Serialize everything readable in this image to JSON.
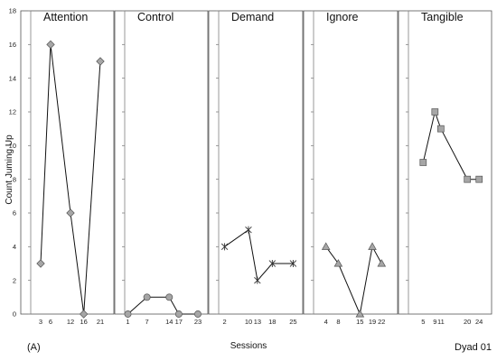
{
  "figure": {
    "panel_label": "(A)",
    "dyad_label": "Dyad 01"
  },
  "colors": {
    "marker_fill": "#a6a6a6",
    "marker_stroke": "#555555",
    "line": "#111111",
    "frame": "#555555",
    "axis": "#808080"
  },
  "chart_data": {
    "type": "line",
    "ylabel": "Count Juming Up",
    "xlabel": "Sessions",
    "ylim": [
      0,
      18
    ],
    "yticks": [
      0,
      2,
      4,
      6,
      8,
      10,
      12,
      14,
      16,
      18
    ],
    "grid": false,
    "panels": [
      {
        "name": "Attention",
        "marker": "diamond",
        "xlim": [
          0,
          24
        ],
        "xticks": [
          3,
          6,
          12,
          16,
          21
        ],
        "points": [
          [
            3,
            3
          ],
          [
            6,
            16
          ],
          [
            12,
            6
          ],
          [
            16,
            0
          ],
          [
            21,
            15
          ]
        ]
      },
      {
        "name": "Control",
        "marker": "circle",
        "xlim": [
          0,
          25
        ],
        "xticks": [
          1,
          7,
          14,
          17,
          23
        ],
        "points": [
          [
            1,
            0
          ],
          [
            7,
            1
          ],
          [
            14,
            1
          ],
          [
            17,
            0
          ],
          [
            23,
            0
          ]
        ]
      },
      {
        "name": "Demand",
        "marker": "star",
        "xlim": [
          0,
          27
        ],
        "xticks": [
          2,
          10,
          13,
          18,
          25
        ],
        "points": [
          [
            2,
            4
          ],
          [
            10,
            5
          ],
          [
            13,
            2
          ],
          [
            18,
            3
          ],
          [
            25,
            3
          ]
        ]
      },
      {
        "name": "Ignore",
        "marker": "triangle",
        "xlim": [
          0,
          26
        ],
        "xticks": [
          4,
          8,
          15,
          19,
          22
        ],
        "points": [
          [
            4,
            4
          ],
          [
            8,
            3
          ],
          [
            15,
            0
          ],
          [
            19,
            4
          ],
          [
            22,
            3
          ]
        ]
      },
      {
        "name": "Tangible",
        "marker": "square",
        "xlim": [
          0,
          27
        ],
        "xticks": [
          5,
          9,
          11,
          20,
          24
        ],
        "points": [
          [
            5,
            9
          ],
          [
            9,
            12
          ],
          [
            11,
            11
          ],
          [
            20,
            8
          ],
          [
            24,
            8
          ]
        ]
      }
    ]
  }
}
